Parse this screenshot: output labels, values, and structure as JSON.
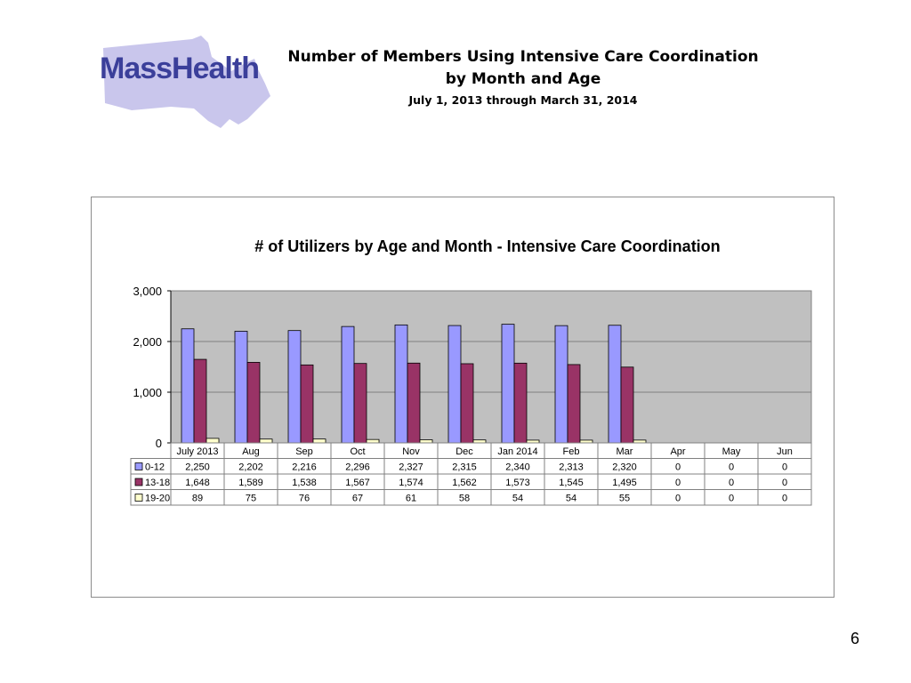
{
  "logo": {
    "text": "MassHealth",
    "shape_color": "#c9c6ec",
    "text_color": "#3b3f9a"
  },
  "header": {
    "title_line1": "Number of Members Using Intensive Care Coordination",
    "title_line2": "by Month and Age",
    "date_range": "July 1, 2013 through March 31, 2014"
  },
  "page_number": "6",
  "chart_data": {
    "type": "bar",
    "title": "# of Utilizers by Age and Month - Intensive Care Coordination",
    "categories": [
      "July 2013",
      "Aug",
      "Sep",
      "Oct",
      "Nov",
      "Dec",
      "Jan 2014",
      "Feb",
      "Mar",
      "Apr",
      "May",
      "Jun"
    ],
    "series": [
      {
        "name": "0-12",
        "color": "#9999ff",
        "values": [
          2250,
          2202,
          2216,
          2296,
          2327,
          2315,
          2340,
          2313,
          2320,
          0,
          0,
          0
        ],
        "labels": [
          "2,250",
          "2,202",
          "2,216",
          "2,296",
          "2,327",
          "2,315",
          "2,340",
          "2,313",
          "2,320",
          "0",
          "0",
          "0"
        ]
      },
      {
        "name": "13-18",
        "color": "#993366",
        "values": [
          1648,
          1589,
          1538,
          1567,
          1574,
          1562,
          1573,
          1545,
          1495,
          0,
          0,
          0
        ],
        "labels": [
          "1,648",
          "1,589",
          "1,538",
          "1,567",
          "1,574",
          "1,562",
          "1,573",
          "1,545",
          "1,495",
          "0",
          "0",
          "0"
        ]
      },
      {
        "name": "19-20",
        "color": "#ffffcc",
        "values": [
          89,
          75,
          76,
          67,
          61,
          58,
          54,
          54,
          55,
          0,
          0,
          0
        ],
        "labels": [
          "89",
          "75",
          "76",
          "67",
          "61",
          "58",
          "54",
          "54",
          "55",
          "0",
          "0",
          "0"
        ]
      }
    ],
    "ylim": [
      0,
      3000
    ],
    "yticks": [
      0,
      1000,
      2000,
      3000
    ],
    "ytick_labels": [
      "0",
      "1,000",
      "2,000",
      "3,000"
    ],
    "xlabel": "",
    "ylabel": "",
    "plot_background": "#c0c0c0",
    "grid": true,
    "legend": "data-table"
  }
}
